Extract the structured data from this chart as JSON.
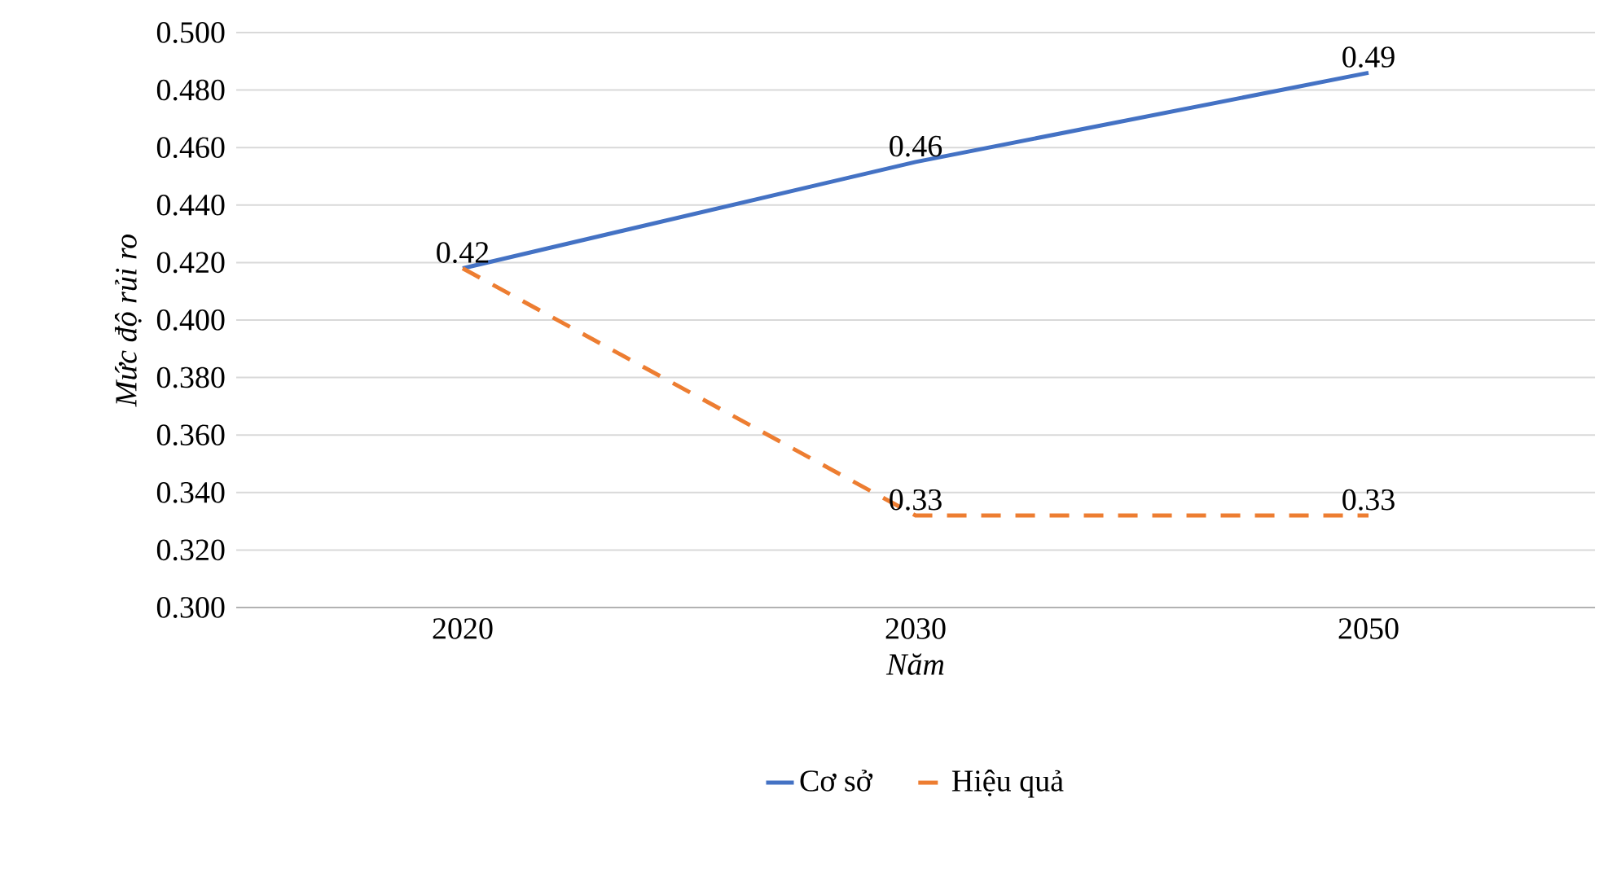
{
  "chart_data": {
    "type": "line",
    "xlabel": "Năm",
    "ylabel": "Mức độ rủi ro",
    "categories": [
      "2020",
      "2030",
      "2050"
    ],
    "series": [
      {
        "name": "Cơ sở",
        "color": "#4472c4",
        "line_style": "solid",
        "values": [
          0.418,
          0.455,
          0.486
        ],
        "value_labels": [
          "0.42",
          "0.46",
          "0.49"
        ]
      },
      {
        "name": "Hiệu quả",
        "color": "#ed7d31",
        "line_style": "dashed",
        "values": [
          0.418,
          0.332,
          0.332
        ],
        "value_labels": [
          null,
          "0.33",
          "0.33"
        ]
      }
    ],
    "ylim": [
      0.3,
      0.5
    ],
    "yticks": [
      {
        "value": 0.3,
        "label": "0.300"
      },
      {
        "value": 0.32,
        "label": "0.320"
      },
      {
        "value": 0.34,
        "label": "0.340"
      },
      {
        "value": 0.36,
        "label": "0.360"
      },
      {
        "value": 0.38,
        "label": "0.380"
      },
      {
        "value": 0.4,
        "label": "0.400"
      },
      {
        "value": 0.42,
        "label": "0.420"
      },
      {
        "value": 0.44,
        "label": "0.440"
      },
      {
        "value": 0.46,
        "label": "0.460"
      },
      {
        "value": 0.48,
        "label": "0.480"
      },
      {
        "value": 0.5,
        "label": "0.500"
      }
    ],
    "grid": "y",
    "legend": "bottom"
  }
}
